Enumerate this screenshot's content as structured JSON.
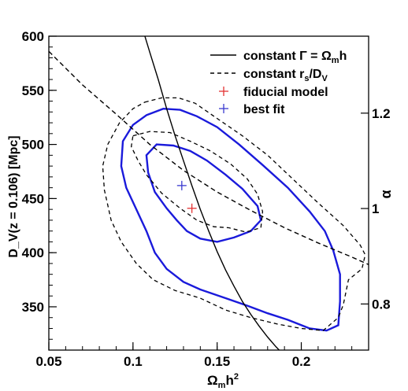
{
  "chart_data": {
    "type": "line",
    "xlabel_main": "Ω",
    "xlabel_sub": "m",
    "xlabel_rest": "h",
    "xlabel_sup": "2",
    "ylabel": "D_V(z = 0.106) [Mpc]",
    "y2label": "α",
    "xlim": [
      0.05,
      0.24
    ],
    "ylim": [
      310,
      600
    ],
    "x_ticks": [
      {
        "v": 0.05,
        "label": "0.05"
      },
      {
        "v": 0.1,
        "label": "0.1"
      },
      {
        "v": 0.15,
        "label": "0.15"
      },
      {
        "v": 0.2,
        "label": "0.2"
      }
    ],
    "y_ticks": [
      {
        "v": 350,
        "label": "350"
      },
      {
        "v": 400,
        "label": "400"
      },
      {
        "v": 450,
        "label": "450"
      },
      {
        "v": 500,
        "label": "500"
      },
      {
        "v": 550,
        "label": "550"
      },
      {
        "v": 600,
        "label": "600"
      }
    ],
    "y2_ticks": [
      {
        "v": 352.6,
        "label": "0.8"
      },
      {
        "v": 440.8,
        "label": "1"
      },
      {
        "v": 528.9,
        "label": "1.2"
      }
    ],
    "legend": {
      "placement": "top-right",
      "entries": [
        {
          "label_prefix": "constant Γ = Ω",
          "label_sub": "m",
          "label_suffix": "h",
          "style": "solid-line"
        },
        {
          "label_prefix": "constant r",
          "label_sub": "s",
          "label_suffix": "/D",
          "label_sub2": "V",
          "style": "dashed-line"
        },
        {
          "label_prefix": "fiducial model",
          "style": "red-cross"
        },
        {
          "label_prefix": "best fit",
          "style": "blue-cross"
        }
      ]
    },
    "colors": {
      "contour": "#1a1adb",
      "fiducial": "#e33333",
      "bestfit": "#3a3ad0",
      "dashed": "#000000",
      "solid": "#000000"
    },
    "series": [
      {
        "name": "constant Γ = Ωmh",
        "style": "solid",
        "points": [
          [
            0.1065,
            603
          ],
          [
            0.11,
            585
          ],
          [
            0.115,
            560
          ],
          [
            0.12,
            533
          ],
          [
            0.125,
            508
          ],
          [
            0.13,
            485
          ],
          [
            0.135,
            462
          ],
          [
            0.14,
            440
          ],
          [
            0.145,
            420
          ],
          [
            0.15,
            401
          ],
          [
            0.155,
            384
          ],
          [
            0.16,
            369
          ],
          [
            0.165,
            355
          ],
          [
            0.17,
            343
          ],
          [
            0.175,
            332
          ],
          [
            0.18,
            322
          ],
          [
            0.185,
            313
          ],
          [
            0.1875,
            309
          ]
        ]
      },
      {
        "name": "constant rs/DV",
        "style": "dashed",
        "points": [
          [
            0.05,
            586
          ],
          [
            0.07,
            555
          ],
          [
            0.09,
            528
          ],
          [
            0.11,
            500
          ],
          [
            0.13,
            476
          ],
          [
            0.15,
            456
          ],
          [
            0.17,
            439
          ],
          [
            0.19,
            423
          ],
          [
            0.21,
            409
          ],
          [
            0.23,
            396
          ],
          [
            0.24,
            389
          ]
        ]
      }
    ],
    "contours": [
      {
        "style": "blue-solid",
        "points": [
          [
            0.108,
            527
          ],
          [
            0.118,
            533
          ],
          [
            0.128,
            532
          ],
          [
            0.138,
            526
          ],
          [
            0.15,
            516
          ],
          [
            0.163,
            500
          ],
          [
            0.177,
            481
          ],
          [
            0.192,
            460
          ],
          [
            0.205,
            438
          ],
          [
            0.214,
            420
          ],
          [
            0.219,
            402
          ],
          [
            0.223,
            380
          ],
          [
            0.223,
            355
          ],
          [
            0.222,
            333
          ],
          [
            0.215,
            328
          ],
          [
            0.205,
            330
          ],
          [
            0.192,
            338
          ],
          [
            0.18,
            344
          ],
          [
            0.168,
            351
          ],
          [
            0.155,
            358
          ],
          [
            0.14,
            366
          ],
          [
            0.13,
            373
          ],
          [
            0.12,
            385
          ],
          [
            0.113,
            400
          ],
          [
            0.108,
            420
          ],
          [
            0.102,
            440
          ],
          [
            0.096,
            460
          ],
          [
            0.093,
            480
          ],
          [
            0.094,
            503
          ],
          [
            0.1,
            518
          ]
        ]
      },
      {
        "style": "blue-solid",
        "points": [
          [
            0.114,
            500
          ],
          [
            0.124,
            499
          ],
          [
            0.134,
            494
          ],
          [
            0.144,
            485
          ],
          [
            0.155,
            472
          ],
          [
            0.165,
            459
          ],
          [
            0.174,
            443
          ],
          [
            0.176,
            430
          ],
          [
            0.17,
            420
          ],
          [
            0.16,
            414
          ],
          [
            0.15,
            410
          ],
          [
            0.14,
            413
          ],
          [
            0.132,
            420
          ],
          [
            0.126,
            430
          ],
          [
            0.12,
            441
          ],
          [
            0.113,
            456
          ],
          [
            0.109,
            474
          ],
          [
            0.108,
            490
          ]
        ]
      },
      {
        "style": "black-dashed",
        "points": [
          [
            0.107,
            539
          ],
          [
            0.117,
            543
          ],
          [
            0.127,
            543
          ],
          [
            0.137,
            538
          ],
          [
            0.15,
            524
          ],
          [
            0.165,
            508
          ],
          [
            0.18,
            490
          ],
          [
            0.195,
            468
          ],
          [
            0.21,
            446
          ],
          [
            0.225,
            425
          ],
          [
            0.235,
            407
          ],
          [
            0.238,
            398
          ],
          [
            0.236,
            385
          ],
          [
            0.228,
            375
          ],
          [
            0.225,
            352
          ],
          [
            0.222,
            340
          ],
          [
            0.213,
            328
          ],
          [
            0.2,
            330
          ],
          [
            0.186,
            334
          ],
          [
            0.17,
            340
          ],
          [
            0.155,
            347
          ],
          [
            0.14,
            358
          ],
          [
            0.125,
            365
          ],
          [
            0.112,
            375
          ],
          [
            0.102,
            390
          ],
          [
            0.093,
            410
          ],
          [
            0.087,
            430
          ],
          [
            0.083,
            458
          ],
          [
            0.082,
            480
          ],
          [
            0.085,
            500
          ],
          [
            0.092,
            520
          ],
          [
            0.1,
            533
          ]
        ]
      },
      {
        "style": "black-dashed",
        "points": [
          [
            0.1,
            508
          ],
          [
            0.11,
            512
          ],
          [
            0.122,
            511
          ],
          [
            0.134,
            503
          ],
          [
            0.146,
            494
          ],
          [
            0.158,
            482
          ],
          [
            0.168,
            468
          ],
          [
            0.174,
            454
          ],
          [
            0.177,
            438
          ],
          [
            0.176,
            423
          ],
          [
            0.167,
            419
          ],
          [
            0.157,
            423
          ],
          [
            0.148,
            424
          ],
          [
            0.138,
            430
          ],
          [
            0.128,
            441
          ],
          [
            0.117,
            455
          ],
          [
            0.108,
            472
          ],
          [
            0.103,
            485
          ],
          [
            0.099,
            498
          ]
        ]
      }
    ],
    "markers": [
      {
        "name": "fiducial model",
        "x": 0.135,
        "y": 441,
        "color": "#e33333"
      },
      {
        "name": "best fit",
        "x": 0.129,
        "y": 462,
        "color": "#3a3ad0"
      }
    ]
  }
}
